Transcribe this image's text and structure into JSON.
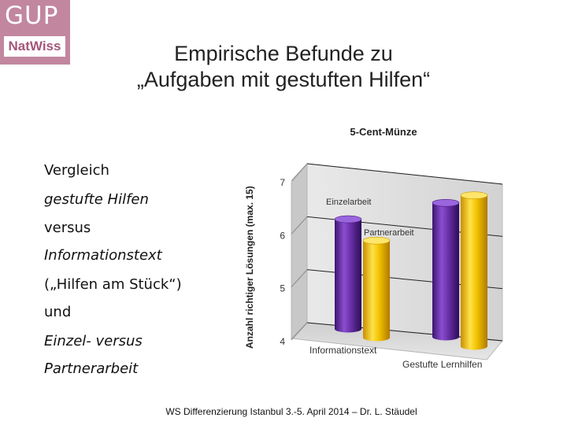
{
  "logo": {
    "top": "GUP",
    "bottom": "NatWiss"
  },
  "title": {
    "line1": "Empirische Befunde zu",
    "line2": "„Aufgaben mit gestuften Hilfen“"
  },
  "left_list": [
    {
      "text": "Vergleich",
      "italic": false
    },
    {
      "text": "gestufte Hilfen",
      "italic": true
    },
    {
      "text": "versus",
      "italic": false
    },
    {
      "text": "Informationstext",
      "italic": true
    },
    {
      "text": "(„Hilfen am Stück“)",
      "italic": false
    },
    {
      "text": "und",
      "italic": false
    },
    {
      "text": "Einzel- versus",
      "italic": true
    },
    {
      "text": "Partnerarbeit",
      "italic": true
    }
  ],
  "footer": "WS Differenzierung Istanbul 3.-5. April 2014 – Dr. L. Stäudel",
  "colors": {
    "purple": "#6a2fa6",
    "gold": "#f2c200",
    "logo_bg": "#c2869f"
  },
  "chart_data": {
    "type": "bar",
    "title": "5-Cent-Münze",
    "ylabel": "Anzahl richtiger Lösungen (max. 15)",
    "ylim": [
      4,
      7
    ],
    "yticks": [
      7,
      6,
      5,
      4
    ],
    "categories": [
      "Informationstext",
      "Gestufte Lernhilfen"
    ],
    "series": [
      {
        "name": "Einzelarbeit",
        "color": "#6a2fa6",
        "values": [
          6.0,
          6.5
        ]
      },
      {
        "name": "Partnerarbeit",
        "color": "#f2c200",
        "values": [
          5.65,
          6.7
        ]
      }
    ],
    "legend": "inside-top-left",
    "grid": true
  }
}
